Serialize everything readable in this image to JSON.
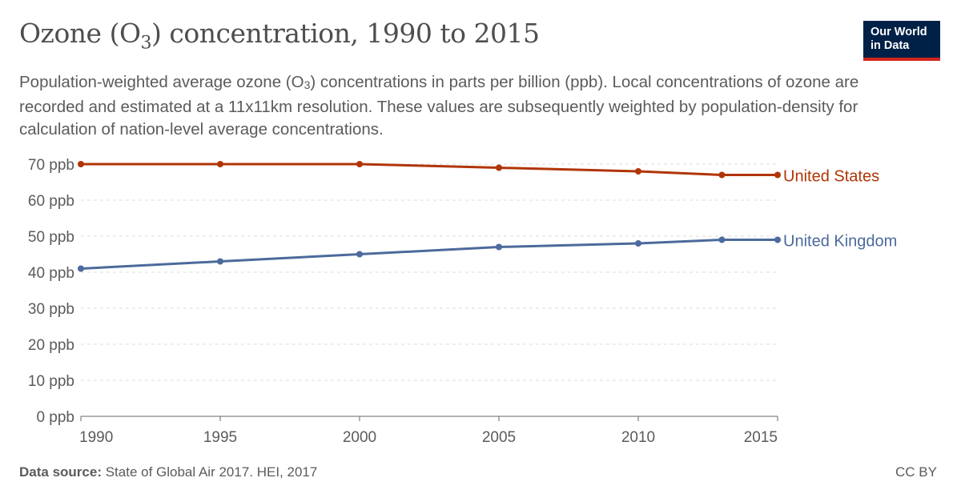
{
  "header": {
    "title_main": "Ozone (O",
    "title_sub": "3",
    "title_end": ") concentration, 1990 to 2015",
    "subtitle_a": "Population-weighted average ozone (O",
    "subtitle_sub": "3",
    "subtitle_b": ") concentrations in parts per billion (ppb). Local concentrations of ozone are recorded and estimated at a 11x11km resolution. These values are subsequently weighted by population-density for calculation of nation-level average concentrations.",
    "logo_line1": "Our World",
    "logo_line2": "in Data"
  },
  "footer": {
    "source_label": "Data source:",
    "source_text": " State of Global Air 2017. HEI, 2017",
    "license": "CC BY"
  },
  "colors": {
    "united_states": "#b13507",
    "united_kingdom": "#4c6a9c",
    "grid": "#dddddd",
    "axis": "#666666",
    "tick_text": "#5b5b5b"
  },
  "chart_data": {
    "type": "line",
    "xlim": [
      1990,
      2015
    ],
    "ylim": [
      0,
      70
    ],
    "x_ticks": [
      1990,
      1995,
      2000,
      2005,
      2010,
      2015
    ],
    "y_ticks": [
      0,
      10,
      20,
      30,
      40,
      50,
      60,
      70
    ],
    "y_tick_labels": [
      "0 ppb",
      "10 ppb",
      "20 ppb",
      "30 ppb",
      "40 ppb",
      "50 ppb",
      "60 ppb",
      "70 ppb"
    ],
    "x_tick_labels": [
      "1990",
      "1995",
      "2000",
      "2005",
      "2010",
      "2015"
    ],
    "grid": true,
    "legend": "end-of-line labels",
    "series": [
      {
        "name": "United States",
        "color_key": "united_states",
        "x": [
          1990,
          1995,
          2000,
          2005,
          2010,
          2013,
          2015
        ],
        "values": [
          70,
          70,
          70,
          69,
          68,
          67,
          67
        ]
      },
      {
        "name": "United Kingdom",
        "color_key": "united_kingdom",
        "x": [
          1990,
          1995,
          2000,
          2005,
          2010,
          2013,
          2015
        ],
        "values": [
          41,
          43,
          45,
          47,
          48,
          49,
          49
        ]
      }
    ]
  }
}
